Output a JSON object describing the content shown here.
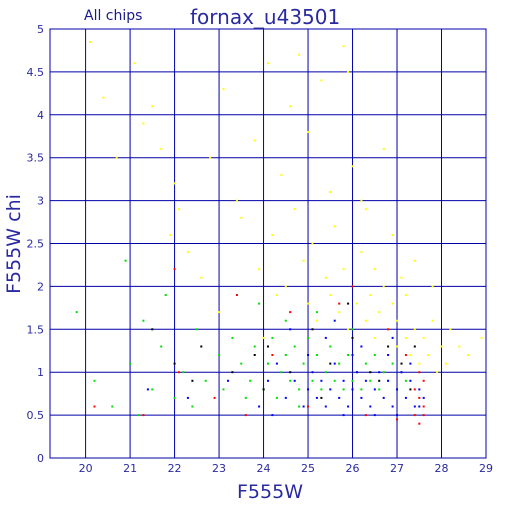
{
  "chart_data": {
    "type": "scatter",
    "title": "fornax_u43501",
    "subtitle": "All chips",
    "xlabel": "F555W",
    "ylabel": "F555W chi",
    "xlim": [
      19.2,
      29.0
    ],
    "ylim": [
      0,
      5
    ],
    "x_ticks": [
      "20",
      "21",
      "22",
      "23",
      "24",
      "25",
      "26",
      "27",
      "28",
      "29"
    ],
    "y_ticks": [
      "0",
      "0.5",
      "1",
      "1.5",
      "2",
      "2.5",
      "3",
      "3.5",
      "4",
      "4.5",
      "5"
    ],
    "grid": true,
    "colors": {
      "grid": "#0000aa",
      "text": "#2a2aa0",
      "series_yellow": "#ffff00",
      "series_green": "#00e000",
      "series_blue": "#0000ff",
      "series_red": "#ff0000",
      "series_black": "#000000"
    },
    "series": [
      {
        "color": "#ffff00",
        "points": [
          [
            20.1,
            4.85
          ],
          [
            20.4,
            4.2
          ],
          [
            21.1,
            4.6
          ],
          [
            21.3,
            3.9
          ],
          [
            21.5,
            4.1
          ],
          [
            21.7,
            3.6
          ],
          [
            22.0,
            3.2
          ],
          [
            22.3,
            2.4
          ],
          [
            22.6,
            2.1
          ],
          [
            22.8,
            3.5
          ],
          [
            23.1,
            4.3
          ],
          [
            23.4,
            3.0
          ],
          [
            23.5,
            2.8
          ],
          [
            23.8,
            3.7
          ],
          [
            23.9,
            2.2
          ],
          [
            24.1,
            4.6
          ],
          [
            24.2,
            2.6
          ],
          [
            24.3,
            1.9
          ],
          [
            24.4,
            3.3
          ],
          [
            24.5,
            2.0
          ],
          [
            24.6,
            1.7
          ],
          [
            24.7,
            2.9
          ],
          [
            24.8,
            4.7
          ],
          [
            24.9,
            2.3
          ],
          [
            25.0,
            1.8
          ],
          [
            25.0,
            3.8
          ],
          [
            25.1,
            2.5
          ],
          [
            25.2,
            1.6
          ],
          [
            25.3,
            4.4
          ],
          [
            25.4,
            2.1
          ],
          [
            25.5,
            1.9
          ],
          [
            25.5,
            3.1
          ],
          [
            25.6,
            2.7
          ],
          [
            25.7,
            1.7
          ],
          [
            25.8,
            2.2
          ],
          [
            25.8,
            4.8
          ],
          [
            25.9,
            1.5
          ],
          [
            26.0,
            2.0
          ],
          [
            26.0,
            3.4
          ],
          [
            26.1,
            1.8
          ],
          [
            26.2,
            2.4
          ],
          [
            26.3,
            1.6
          ],
          [
            26.3,
            2.9
          ],
          [
            26.4,
            1.9
          ],
          [
            26.5,
            1.4
          ],
          [
            26.5,
            2.2
          ],
          [
            26.6,
            1.7
          ],
          [
            26.7,
            2.0
          ],
          [
            26.7,
            3.6
          ],
          [
            26.8,
            1.5
          ],
          [
            26.9,
            1.8
          ],
          [
            26.9,
            2.6
          ],
          [
            27.0,
            1.3
          ],
          [
            27.0,
            1.6
          ],
          [
            27.1,
            2.1
          ],
          [
            27.2,
            1.4
          ],
          [
            27.2,
            1.9
          ],
          [
            27.3,
            1.2
          ],
          [
            27.4,
            1.5
          ],
          [
            27.4,
            2.3
          ],
          [
            27.5,
            1.1
          ],
          [
            27.6,
            1.4
          ],
          [
            27.7,
            1.2
          ],
          [
            27.8,
            1.6
          ],
          [
            27.9,
            1.0
          ],
          [
            28.0,
            1.3
          ],
          [
            28.1,
            1.1
          ],
          [
            28.2,
            1.5
          ],
          [
            28.4,
            1.3
          ],
          [
            28.6,
            1.2
          ],
          [
            28.9,
            1.4
          ],
          [
            20.7,
            3.5
          ],
          [
            22.1,
            2.9
          ],
          [
            23.0,
            1.7
          ],
          [
            24.0,
            1.4
          ],
          [
            24.6,
            4.1
          ],
          [
            25.9,
            4.5
          ],
          [
            26.2,
            3.0
          ],
          [
            27.8,
            2.0
          ],
          [
            21.9,
            2.6
          ]
        ]
      },
      {
        "color": "#00e000",
        "points": [
          [
            19.8,
            1.7
          ],
          [
            20.2,
            0.9
          ],
          [
            20.6,
            0.6
          ],
          [
            21.0,
            1.1
          ],
          [
            21.3,
            1.6
          ],
          [
            21.5,
            0.8
          ],
          [
            21.7,
            1.3
          ],
          [
            22.0,
            0.7
          ],
          [
            22.2,
            1.0
          ],
          [
            22.5,
            1.5
          ],
          [
            22.7,
            0.9
          ],
          [
            23.0,
            1.2
          ],
          [
            23.1,
            0.8
          ],
          [
            23.3,
            1.4
          ],
          [
            23.5,
            1.1
          ],
          [
            23.7,
            0.9
          ],
          [
            23.8,
            1.3
          ],
          [
            24.0,
            0.8
          ],
          [
            24.1,
            1.1
          ],
          [
            24.2,
            1.4
          ],
          [
            24.3,
            0.7
          ],
          [
            24.4,
            1.0
          ],
          [
            24.5,
            1.2
          ],
          [
            24.6,
            0.9
          ],
          [
            24.7,
            1.3
          ],
          [
            24.8,
            0.8
          ],
          [
            24.9,
            1.1
          ],
          [
            25.0,
            1.4
          ],
          [
            25.1,
            0.9
          ],
          [
            25.2,
            1.2
          ],
          [
            25.3,
            0.8
          ],
          [
            25.4,
            1.0
          ],
          [
            25.5,
            1.3
          ],
          [
            25.6,
            0.9
          ],
          [
            25.7,
            1.1
          ],
          [
            25.8,
            0.8
          ],
          [
            25.9,
            1.2
          ],
          [
            26.0,
            0.9
          ],
          [
            26.1,
            1.0
          ],
          [
            26.2,
            0.8
          ],
          [
            26.3,
            1.1
          ],
          [
            26.4,
            0.9
          ],
          [
            26.5,
            1.2
          ],
          [
            26.6,
            0.8
          ],
          [
            26.7,
            1.0
          ],
          [
            26.8,
            0.9
          ],
          [
            26.9,
            1.1
          ],
          [
            27.0,
            0.8
          ],
          [
            27.1,
            1.0
          ],
          [
            27.2,
            0.9
          ],
          [
            21.2,
            0.5
          ],
          [
            22.4,
            0.6
          ],
          [
            23.6,
            0.7
          ],
          [
            24.5,
            1.6
          ],
          [
            25.2,
            1.7
          ],
          [
            26.0,
            1.5
          ],
          [
            20.9,
            2.3
          ],
          [
            21.8,
            1.9
          ],
          [
            23.9,
            1.8
          ],
          [
            24.8,
            0.6
          ]
        ]
      },
      {
        "color": "#0000ff",
        "points": [
          [
            21.4,
            0.8
          ],
          [
            22.3,
            0.7
          ],
          [
            23.2,
            0.9
          ],
          [
            23.9,
            0.6
          ],
          [
            24.1,
            0.9
          ],
          [
            24.3,
            1.1
          ],
          [
            24.5,
            0.7
          ],
          [
            24.7,
            0.9
          ],
          [
            24.9,
            0.6
          ],
          [
            25.0,
            0.8
          ],
          [
            25.1,
            1.0
          ],
          [
            25.2,
            0.7
          ],
          [
            25.3,
            0.9
          ],
          [
            25.4,
            0.6
          ],
          [
            25.5,
            0.8
          ],
          [
            25.6,
            1.1
          ],
          [
            25.7,
            0.7
          ],
          [
            25.8,
            0.9
          ],
          [
            25.9,
            0.6
          ],
          [
            26.0,
            0.8
          ],
          [
            26.1,
            1.0
          ],
          [
            26.2,
            0.7
          ],
          [
            26.3,
            0.9
          ],
          [
            26.4,
            0.6
          ],
          [
            26.5,
            0.8
          ],
          [
            26.6,
            1.0
          ],
          [
            26.7,
            0.7
          ],
          [
            26.8,
            0.9
          ],
          [
            26.9,
            0.6
          ],
          [
            27.0,
            0.8
          ],
          [
            27.1,
            1.0
          ],
          [
            27.2,
            0.7
          ],
          [
            27.3,
            0.9
          ],
          [
            27.4,
            0.6
          ],
          [
            27.5,
            0.8
          ],
          [
            27.6,
            0.7
          ],
          [
            26.2,
            1.3
          ],
          [
            25.4,
            1.4
          ],
          [
            24.6,
            1.5
          ],
          [
            26.8,
            1.2
          ],
          [
            27.0,
            0.5
          ],
          [
            26.5,
            0.5
          ],
          [
            25.8,
            0.5
          ],
          [
            27.3,
            1.1
          ],
          [
            24.2,
            0.5
          ],
          [
            25.6,
            1.6
          ],
          [
            26.9,
            1.4
          ],
          [
            27.5,
            0.6
          ],
          [
            26.0,
            1.2
          ],
          [
            25.0,
            1.2
          ]
        ]
      },
      {
        "color": "#ff0000",
        "points": [
          [
            20.2,
            0.6
          ],
          [
            21.3,
            0.5
          ],
          [
            22.1,
            1.0
          ],
          [
            22.9,
            0.7
          ],
          [
            23.4,
            1.9
          ],
          [
            23.6,
            0.5
          ],
          [
            24.2,
            1.2
          ],
          [
            25.0,
            0.6
          ],
          [
            25.7,
            1.8
          ],
          [
            26.3,
            0.5
          ],
          [
            27.0,
            0.45
          ],
          [
            27.4,
            0.5
          ],
          [
            27.5,
            0.7
          ],
          [
            27.6,
            0.9
          ],
          [
            27.6,
            0.6
          ],
          [
            27.5,
            1.0
          ],
          [
            27.4,
            0.8
          ],
          [
            26.8,
            1.5
          ],
          [
            26.0,
            2.0
          ],
          [
            24.6,
            1.7
          ],
          [
            22.0,
            2.2
          ],
          [
            27.2,
            1.2
          ],
          [
            27.6,
            0.5
          ],
          [
            27.5,
            0.4
          ]
        ]
      },
      {
        "color": "#000000",
        "points": [
          [
            21.5,
            1.5
          ],
          [
            22.0,
            1.1
          ],
          [
            22.6,
            1.3
          ],
          [
            23.3,
            1.0
          ],
          [
            24.1,
            1.3
          ],
          [
            24.6,
            1.0
          ],
          [
            25.1,
            1.5
          ],
          [
            25.5,
            1.1
          ],
          [
            26.0,
            1.4
          ],
          [
            26.4,
            1.0
          ],
          [
            26.8,
            1.3
          ],
          [
            27.1,
            1.1
          ],
          [
            27.3,
            0.8
          ],
          [
            25.3,
            0.7
          ],
          [
            24.0,
            0.8
          ],
          [
            26.6,
            0.9
          ],
          [
            23.8,
            1.2
          ],
          [
            25.9,
            1.8
          ],
          [
            27.4,
            1.3
          ],
          [
            22.4,
            0.9
          ]
        ]
      }
    ]
  }
}
